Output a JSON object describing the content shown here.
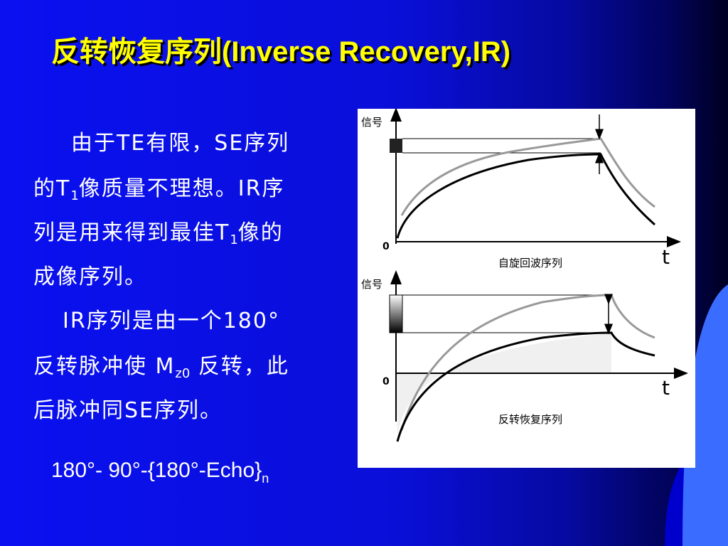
{
  "title": "反转恢复序列(Inverse Recovery,IR)",
  "body": {
    "lines": [
      [
        "由于TE有限，SE序列"
      ],
      [
        "的T",
        "1",
        "像质量不理想。IR序"
      ],
      [
        "列是用来得到最佳T",
        "1",
        "像的"
      ],
      [
        "成像序列。"
      ],
      [
        "IR序列是由一个180°"
      ],
      [
        "反转脉冲使 M",
        "z0",
        " 反转，此"
      ],
      [
        "后脉冲同SE序列。"
      ]
    ]
  },
  "formula": [
    "180°- 90°-{180°-Echo}",
    "n"
  ],
  "diagram": {
    "top": {
      "y_label": "信号",
      "origin": "0",
      "x_label": "t",
      "caption": "自旋回波序列"
    },
    "bottom": {
      "y_label": "信号",
      "origin": "0",
      "x_label": "t",
      "caption": "反转恢复序列"
    }
  }
}
